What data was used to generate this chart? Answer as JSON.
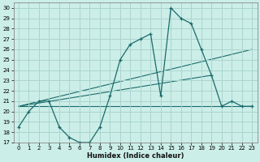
{
  "xlabel": "Humidex (Indice chaleur)",
  "bg_color": "#cceee8",
  "grid_color": "#aad4ce",
  "line_color": "#1a6b6b",
  "xlim": [
    -0.5,
    23.5
  ],
  "ylim": [
    17,
    30.5
  ],
  "xticks": [
    0,
    1,
    2,
    3,
    4,
    5,
    6,
    7,
    8,
    9,
    10,
    11,
    12,
    13,
    14,
    15,
    16,
    17,
    18,
    19,
    20,
    21,
    22,
    23
  ],
  "yticks": [
    17,
    18,
    19,
    20,
    21,
    22,
    23,
    24,
    25,
    26,
    27,
    28,
    29,
    30
  ],
  "main_line": {
    "x": [
      0,
      1,
      2,
      3,
      4,
      5,
      6,
      7,
      8,
      9,
      10,
      11,
      12,
      13,
      14,
      15,
      16,
      17,
      18,
      19,
      20,
      21,
      22,
      23
    ],
    "y": [
      18.5,
      20.0,
      21.0,
      21.0,
      18.5,
      17.5,
      17.0,
      17.0,
      18.5,
      21.5,
      25.0,
      26.5,
      27.0,
      27.5,
      21.5,
      30.0,
      29.0,
      28.5,
      26.0,
      23.5,
      20.5,
      21.0,
      20.5,
      20.5
    ]
  },
  "trend_lines": [
    {
      "x": [
        0,
        23
      ],
      "y": [
        20.5,
        20.5
      ]
    },
    {
      "x": [
        0,
        19
      ],
      "y": [
        20.5,
        23.5
      ]
    },
    {
      "x": [
        0,
        23
      ],
      "y": [
        20.5,
        26.0
      ]
    }
  ]
}
